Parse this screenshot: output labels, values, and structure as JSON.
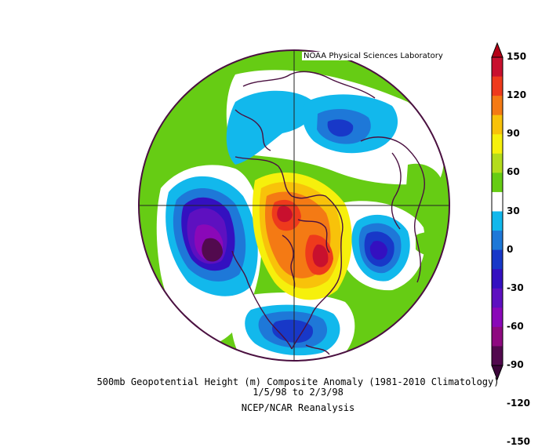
{
  "credit": "NOAA Physical Sciences Laboratory",
  "caption": {
    "line1": "500mb Geopotential Height (m) Composite Anomaly (1981-2010 Climatology)",
    "line2": "1/5/98   to 2/3/98",
    "line3": "NCEP/NCAR Reanalysis"
  },
  "colorbar": {
    "labels": [
      "150",
      "120",
      "90",
      "60",
      "30",
      "0",
      "-30",
      "-60",
      "-90",
      "-120",
      "-150"
    ],
    "colors": [
      "#c8102e",
      "#ee3a1c",
      "#f47a14",
      "#f8c20a",
      "#f6f00c",
      "#b3dc1c",
      "#66cc14",
      "#ffffff",
      "#12b8ec",
      "#1e78d8",
      "#1838c8",
      "#3410c0",
      "#5e10c0",
      "#8a08b8",
      "#8e0a80",
      "#520a4e"
    ]
  }
}
